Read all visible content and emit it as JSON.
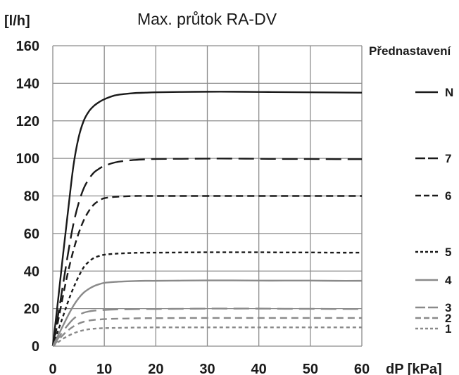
{
  "chart_data": {
    "type": "line",
    "title": "Max. průtok RA-DV",
    "ylabel": "[l/h]",
    "xlabel": "dP [kPa]",
    "xlim": [
      0,
      60
    ],
    "ylim": [
      0,
      160
    ],
    "xticks": [
      0,
      10,
      20,
      30,
      40,
      50,
      60
    ],
    "yticks": [
      0,
      20,
      40,
      60,
      80,
      100,
      120,
      140,
      160
    ],
    "xtick_labels": [
      "0",
      "10",
      "20",
      "30",
      "40",
      "50",
      "60"
    ],
    "ytick_labels": [
      "0",
      "20",
      "40",
      "60",
      "80",
      "100",
      "120",
      "140",
      "160"
    ],
    "grid": true,
    "legend_title": "Přednastavení",
    "legend_position": "right",
    "x": [
      0,
      1,
      2,
      3,
      4,
      5,
      6,
      7,
      8,
      9,
      10,
      12,
      14,
      16,
      18,
      20,
      25,
      30,
      35,
      40,
      45,
      50,
      55,
      60
    ],
    "series": [
      {
        "name": "N",
        "color": "#1a1a1a",
        "dash": "solid",
        "values": [
          0,
          24,
          49,
          73,
          96,
          111,
          120,
          125,
          128,
          130,
          131.5,
          133.5,
          134.3,
          134.8,
          135,
          135.2,
          135.4,
          135.5,
          135.5,
          135.4,
          135.3,
          135.2,
          135.1,
          135
        ]
      },
      {
        "name": "7",
        "color": "#1a1a1a",
        "dash": "long",
        "values": [
          0,
          16,
          33,
          50,
          65,
          76,
          84,
          89,
          92.5,
          94.5,
          96,
          97.8,
          98.7,
          99.2,
          99.5,
          99.7,
          99.8,
          99.9,
          99.9,
          99.8,
          99.7,
          99.7,
          99.6,
          99.6
        ]
      },
      {
        "name": "6",
        "color": "#1a1a1a",
        "dash": "medium",
        "values": [
          0,
          13,
          27,
          40,
          51,
          60,
          67,
          72,
          75.5,
          77.5,
          78.8,
          79.5,
          79.8,
          80,
          80,
          80,
          80,
          80,
          80,
          80,
          80,
          80,
          80,
          80
        ]
      },
      {
        "name": "5",
        "color": "#1a1a1a",
        "dash": "short",
        "values": [
          0,
          8,
          16,
          24,
          31,
          37,
          42,
          45,
          47,
          48,
          48.7,
          49.2,
          49.5,
          49.7,
          49.8,
          49.8,
          49.9,
          50,
          50,
          50,
          49.9,
          49.9,
          49.8,
          49.8
        ]
      },
      {
        "name": "4",
        "color": "#8a8a8a",
        "dash": "solid",
        "values": [
          0,
          5.5,
          11,
          16.5,
          21.5,
          25.5,
          28.5,
          30.5,
          32,
          33,
          33.7,
          34.2,
          34.5,
          34.7,
          34.8,
          34.8,
          34.9,
          35,
          35,
          34.9,
          34.9,
          34.9,
          34.8,
          34.8
        ]
      },
      {
        "name": "3",
        "color": "#8a8a8a",
        "dash": "long",
        "values": [
          0,
          4,
          8,
          11.5,
          14.5,
          16.5,
          17.8,
          18.5,
          18.9,
          19.1,
          19.3,
          19.5,
          19.6,
          19.7,
          19.8,
          19.8,
          19.9,
          20,
          20,
          20,
          19.9,
          19.9,
          19.8,
          19.8
        ]
      },
      {
        "name": "2",
        "color": "#8a8a8a",
        "dash": "medium",
        "values": [
          0,
          3,
          6,
          8.5,
          10.5,
          12,
          13,
          13.6,
          14,
          14.2,
          14.4,
          14.6,
          14.7,
          14.8,
          14.9,
          14.9,
          15,
          15,
          15,
          15,
          15,
          15,
          15,
          15
        ]
      },
      {
        "name": "1",
        "color": "#8a8a8a",
        "dash": "short",
        "values": [
          0,
          2,
          4,
          5.5,
          6.8,
          7.8,
          8.5,
          9,
          9.3,
          9.5,
          9.6,
          9.7,
          9.8,
          9.9,
          9.9,
          10,
          10,
          10,
          10,
          10,
          10,
          10,
          10,
          10
        ]
      }
    ]
  }
}
